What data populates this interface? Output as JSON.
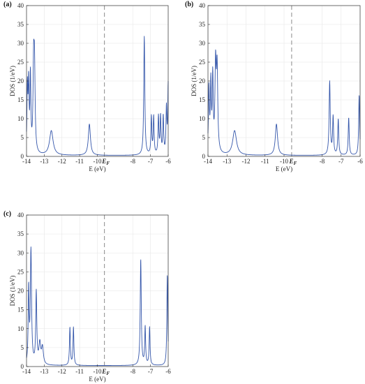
{
  "chart_data": [
    {
      "panel": "(a)",
      "type": "line",
      "xlabel": "E (eV)",
      "ylabel": "DOS (1/eV)",
      "xlim": [
        -14,
        -6
      ],
      "ylim": [
        0,
        40
      ],
      "xticks": [
        -14,
        -13,
        -12,
        -11,
        -10,
        -8,
        -7,
        -6
      ],
      "xtick_labels": [
        "-14",
        "-13",
        "-12",
        "-11",
        "-10",
        "-8",
        "-7",
        "-6"
      ],
      "yticks": [
        0,
        5,
        10,
        15,
        20,
        25,
        30,
        35,
        40
      ],
      "fermi_level": -9.6,
      "fermi_label": "E",
      "fermi_subscript": "F",
      "grid": true,
      "line_color": "#3355aa",
      "peaks": [
        {
          "e": -13.95,
          "h": 17.0,
          "w": 0.03
        },
        {
          "e": -13.88,
          "h": 17.5,
          "w": 0.03
        },
        {
          "e": -13.78,
          "h": 20.0,
          "w": 0.03
        },
        {
          "e": -13.6,
          "h": 21.0,
          "w": 0.04
        },
        {
          "e": -13.55,
          "h": 20.5,
          "w": 0.04
        },
        {
          "e": -12.6,
          "h": 6.5,
          "w": 0.12
        },
        {
          "e": -10.45,
          "h": 8.3,
          "w": 0.07
        },
        {
          "e": -7.35,
          "h": 31.5,
          "w": 0.035
        },
        {
          "e": -6.95,
          "h": 10.0,
          "w": 0.03
        },
        {
          "e": -6.82,
          "h": 10.0,
          "w": 0.03
        },
        {
          "e": -6.55,
          "h": 10.0,
          "w": 0.03
        },
        {
          "e": -6.43,
          "h": 10.0,
          "w": 0.03
        },
        {
          "e": -6.28,
          "h": 10.0,
          "w": 0.03
        },
        {
          "e": -6.1,
          "h": 12.0,
          "w": 0.03
        },
        {
          "e": -6.0,
          "h": 18.5,
          "w": 0.03
        }
      ]
    },
    {
      "panel": "(b)",
      "type": "line",
      "xlabel": "E (eV)",
      "ylabel": "DOS (1/eV)",
      "xlim": [
        -14,
        -6
      ],
      "ylim": [
        0,
        40
      ],
      "xticks": [
        -14,
        -13,
        -12,
        -11,
        -10,
        -8,
        -7,
        -6
      ],
      "xtick_labels": [
        "-14",
        "-13",
        "-12",
        "-11",
        "-10",
        "-8",
        "-7",
        "-6"
      ],
      "yticks": [
        0,
        5,
        10,
        15,
        20,
        25,
        30,
        35,
        40
      ],
      "fermi_level": -9.6,
      "fermi_label": "E",
      "fermi_subscript": "F",
      "grid": true,
      "line_color": "#3355aa",
      "peaks": [
        {
          "e": -13.95,
          "h": 17.0,
          "w": 0.03
        },
        {
          "e": -13.85,
          "h": 18.0,
          "w": 0.03
        },
        {
          "e": -13.75,
          "h": 19.5,
          "w": 0.03
        },
        {
          "e": -13.6,
          "h": 22.5,
          "w": 0.04
        },
        {
          "e": -13.52,
          "h": 21.5,
          "w": 0.04
        },
        {
          "e": -12.6,
          "h": 6.5,
          "w": 0.12
        },
        {
          "e": -10.4,
          "h": 8.3,
          "w": 0.07
        },
        {
          "e": -7.6,
          "h": 19.5,
          "w": 0.035
        },
        {
          "e": -7.42,
          "h": 10.0,
          "w": 0.03
        },
        {
          "e": -7.15,
          "h": 9.5,
          "w": 0.03
        },
        {
          "e": -6.6,
          "h": 10.0,
          "w": 0.03
        },
        {
          "e": -6.05,
          "h": 16.0,
          "w": 0.03
        }
      ]
    },
    {
      "panel": "(c)",
      "type": "line",
      "xlabel": "E (eV)",
      "ylabel": "DOS (1/eV)",
      "xlim": [
        -14,
        -6
      ],
      "ylim": [
        0,
        40
      ],
      "xticks": [
        -14,
        -13,
        -12,
        -11,
        -10,
        -8,
        -7,
        -6
      ],
      "xtick_labels": [
        "-14",
        "-13",
        "-12",
        "-11",
        "-10",
        "-8",
        "-7",
        "-6"
      ],
      "yticks": [
        0,
        5,
        10,
        15,
        20,
        25,
        30,
        35,
        40
      ],
      "fermi_level": -9.6,
      "fermi_label": "E",
      "fermi_subscript": "F",
      "grid": true,
      "line_color": "#3355aa",
      "peaks": [
        {
          "e": -13.88,
          "h": 19.5,
          "w": 0.03
        },
        {
          "e": -13.75,
          "h": 30.0,
          "w": 0.04
        },
        {
          "e": -13.45,
          "h": 19.0,
          "w": 0.035
        },
        {
          "e": -13.25,
          "h": 5.5,
          "w": 0.06
        },
        {
          "e": -13.1,
          "h": 4.5,
          "w": 0.06
        },
        {
          "e": -11.55,
          "h": 10.0,
          "w": 0.03
        },
        {
          "e": -11.35,
          "h": 10.0,
          "w": 0.03
        },
        {
          "e": -7.55,
          "h": 28.0,
          "w": 0.035
        },
        {
          "e": -7.3,
          "h": 10.0,
          "w": 0.03
        },
        {
          "e": -7.05,
          "h": 10.0,
          "w": 0.03
        },
        {
          "e": -6.05,
          "h": 24.0,
          "w": 0.03
        }
      ]
    }
  ]
}
